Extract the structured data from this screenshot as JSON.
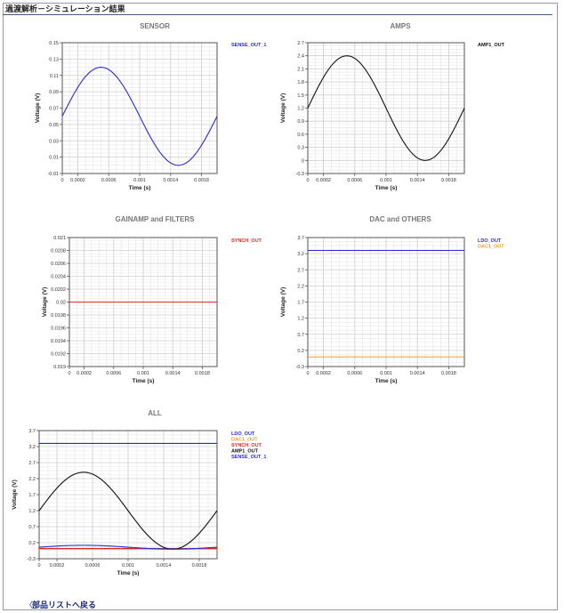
{
  "page": {
    "header_title": "過渡解析－シミュレーション結果",
    "back_link": "部品リストへ戻る",
    "back_arrow": "〈"
  },
  "chart_data": [
    {
      "id": "sensor",
      "type": "line",
      "title": "SENSOR",
      "xlabel": "Time (s)",
      "ylabel": "Voltage (V)",
      "xlim": [
        0,
        0.002
      ],
      "ylim": [
        -0.01,
        0.15
      ],
      "yticks": [
        -0.01,
        0.01,
        0.03,
        0.05,
        0.07,
        0.09,
        0.11,
        0.13,
        0.15
      ],
      "ytick_labels": [
        "-0.01",
        "0.01",
        "0.03",
        "0.05",
        "0.07",
        "0.09",
        "0.11",
        "0.13",
        "0.15"
      ],
      "xticks": [
        0,
        0.0002,
        0.0006,
        0.001,
        0.0014,
        0.0018
      ],
      "xtick_labels": [
        "0",
        "0.0002",
        "0.0006",
        "0.001",
        "0.0014",
        "0.0018"
      ],
      "series": [
        {
          "name": "SENSE_OUT_1",
          "color": "#2b2bd9",
          "kind": "sine",
          "offset": 0.06,
          "amplitude": 0.06,
          "period": 0.002
        }
      ]
    },
    {
      "id": "amps",
      "type": "line",
      "title": "AMPS",
      "xlabel": "Time (s)",
      "ylabel": "Voltage (V)",
      "xlim": [
        0,
        0.002
      ],
      "ylim": [
        -0.3,
        2.7
      ],
      "yticks": [
        -0.3,
        0,
        0.3,
        0.6,
        0.9,
        1.2,
        1.5,
        1.8,
        2.1,
        2.4,
        2.7
      ],
      "ytick_labels": [
        "-0.3",
        "0",
        "0.3",
        "0.6",
        "0.9",
        "1.2",
        "1.5",
        "1.8",
        "2.1",
        "2.4",
        "2.7"
      ],
      "xticks": [
        0,
        0.0002,
        0.0006,
        0.001,
        0.0014,
        0.0018
      ],
      "xtick_labels": [
        "0",
        "0.0002",
        "0.0006",
        "0.001",
        "0.0014",
        "0.0018"
      ],
      "series": [
        {
          "name": "AMP1_OUT",
          "color": "#111111",
          "kind": "sine",
          "offset": 1.2,
          "amplitude": 1.2,
          "period": 0.002
        }
      ]
    },
    {
      "id": "gainamp",
      "type": "line",
      "title": "GAINAMP and FILTERS",
      "xlabel": "Time (s)",
      "ylabel": "Voltage (V)",
      "xlim": [
        0,
        0.002
      ],
      "ylim": [
        0.019,
        0.021
      ],
      "yticks": [
        0.019,
        0.0192,
        0.0194,
        0.0196,
        0.0198,
        0.02,
        0.0202,
        0.0204,
        0.0206,
        0.0208,
        0.021
      ],
      "ytick_labels": [
        "0.019",
        "0.0192",
        "0.0194",
        "0.0196",
        "0.0198",
        "0.02",
        "0.0202",
        "0.0204",
        "0.0206",
        "0.0208",
        "0.021"
      ],
      "xticks": [
        0,
        0.0002,
        0.0006,
        0.001,
        0.0014,
        0.0018
      ],
      "xtick_labels": [
        "0",
        "0.0002",
        "0.0006",
        "0.001",
        "0.0014",
        "0.0018"
      ],
      "series": [
        {
          "name": "SYNCH_OUT",
          "color": "#d92b2b",
          "kind": "const",
          "value": 0.02
        }
      ]
    },
    {
      "id": "dac",
      "type": "line",
      "title": "DAC and OTHERS",
      "xlabel": "Time (s)",
      "ylabel": "Voltage (V)",
      "xlim": [
        0,
        0.002
      ],
      "ylim": [
        -0.3,
        3.7
      ],
      "yticks": [
        -0.3,
        0.2,
        0.7,
        1.2,
        1.7,
        2.2,
        2.7,
        3.2,
        3.7
      ],
      "ytick_labels": [
        "-0.3",
        "0.2",
        "0.7",
        "1.2",
        "1.7",
        "2.2",
        "2.7",
        "3.2",
        "3.7"
      ],
      "xticks": [
        0,
        0.0002,
        0.0006,
        0.001,
        0.0014,
        0.0018
      ],
      "xtick_labels": [
        "0",
        "0.0002",
        "0.0006",
        "0.001",
        "0.0014",
        "0.0018"
      ],
      "series": [
        {
          "name": "LDO_OUT",
          "color": "#2b2bd9",
          "kind": "const",
          "value": 3.3
        },
        {
          "name": "DAC1_OUT",
          "color": "#f0a020",
          "kind": "const",
          "value": 0.0
        }
      ]
    },
    {
      "id": "all",
      "type": "line",
      "title": "ALL",
      "xlabel": "Time (s)",
      "ylabel": "Voltage (V)",
      "xlim": [
        0,
        0.002
      ],
      "ylim": [
        -0.3,
        3.7
      ],
      "yticks": [
        -0.3,
        0.2,
        0.7,
        1.2,
        1.7,
        2.2,
        2.7,
        3.2,
        3.7
      ],
      "ytick_labels": [
        "-0.3",
        "0.2",
        "0.7",
        "1.2",
        "1.7",
        "2.2",
        "2.7",
        "3.2",
        "3.7"
      ],
      "xticks": [
        0,
        0.0002,
        0.0006,
        0.001,
        0.0014,
        0.0018
      ],
      "xtick_labels": [
        "0",
        "0.0002",
        "0.0006",
        "0.001",
        "0.0014",
        "0.0018"
      ],
      "series": [
        {
          "name": "LDO_OUT",
          "color": "#2b2bd9",
          "kind": "const",
          "value": 3.3
        },
        {
          "name": "DAC1_OUT",
          "color": "#f0a020",
          "kind": "const",
          "value": 0.0
        },
        {
          "name": "SYNCH_OUT",
          "color": "#d92b2b",
          "kind": "const",
          "value": 0.02
        },
        {
          "name": "AMP1_OUT",
          "color": "#111111",
          "kind": "sine",
          "offset": 1.2,
          "amplitude": 1.2,
          "period": 0.002
        },
        {
          "name": "SENSE_OUT_1",
          "color": "#2b2bd9",
          "kind": "sine",
          "offset": 0.06,
          "amplitude": 0.06,
          "period": 0.002
        }
      ]
    }
  ]
}
